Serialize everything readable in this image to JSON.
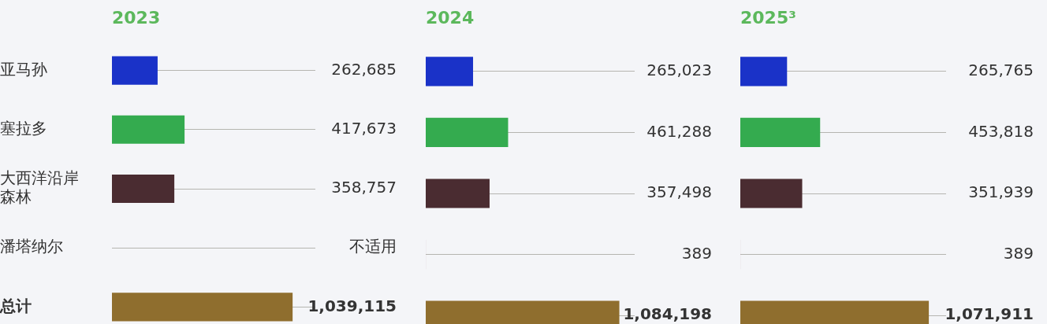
{
  "chart_data": [
    {
      "type": "bar",
      "orientation": "horizontal",
      "title": "2023",
      "categories": [
        "亚马孙",
        "塞拉多",
        "大西洋沿岸森林",
        "潘塔纳尔",
        "总计"
      ],
      "values": [
        262685,
        417673,
        358757,
        null,
        1039115
      ],
      "value_labels": [
        "262,685",
        "417,673",
        "358,757",
        "不适用",
        "1,039,115"
      ],
      "colors": [
        "#1a32c8",
        "#34ab4f",
        "#4a2c31",
        "#b89aa6",
        "#8f6e2e"
      ],
      "xlim": [
        0,
        1170000
      ],
      "tick_labels": "y",
      "grid": "y"
    },
    {
      "type": "bar",
      "orientation": "horizontal",
      "title": "2024",
      "categories": [
        "亚马孙",
        "塞拉多",
        "大西洋沿岸森林",
        "潘塔纳尔",
        "总计"
      ],
      "values": [
        265023,
        461288,
        357498,
        389,
        1084198
      ],
      "value_labels": [
        "265,023",
        "461,288",
        "357,498",
        "389",
        "1,084,198"
      ],
      "colors": [
        "#1a32c8",
        "#34ab4f",
        "#4a2c31",
        "#b89aa6",
        "#8f6e2e"
      ],
      "xlim": [
        0,
        1170000
      ],
      "tick_labels": false,
      "grid": "y"
    },
    {
      "type": "bar",
      "orientation": "horizontal",
      "title": "2025³",
      "categories": [
        "亚马孙",
        "塞拉多",
        "大西洋沿岸森林",
        "潘塔纳尔",
        "总计"
      ],
      "values": [
        265765,
        453818,
        351939,
        389,
        1071911
      ],
      "value_labels": [
        "265,765",
        "453,818",
        "351,939",
        "389",
        "1,071,911"
      ],
      "colors": [
        "#1a32c8",
        "#34ab4f",
        "#4a2c31",
        "#b89aa6",
        "#8f6e2e"
      ],
      "xlim": [
        0,
        1170000
      ],
      "tick_labels": false,
      "grid": "y"
    }
  ]
}
